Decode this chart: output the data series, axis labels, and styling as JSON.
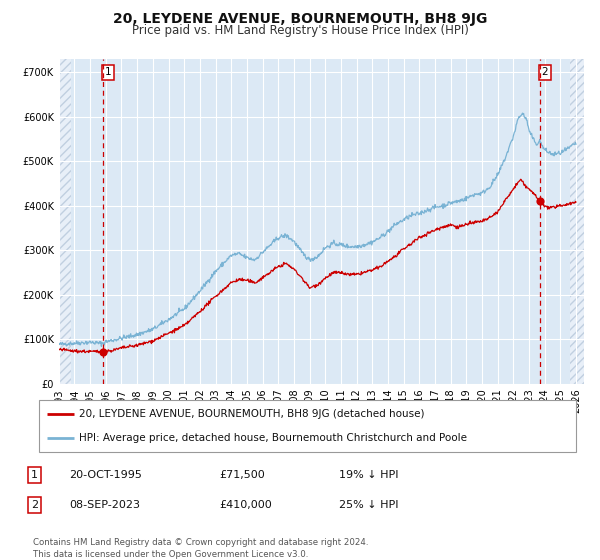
{
  "title": "20, LEYDENE AVENUE, BOURNEMOUTH, BH8 9JG",
  "subtitle": "Price paid vs. HM Land Registry's House Price Index (HPI)",
  "xlim_start": 1993.0,
  "xlim_end": 2026.5,
  "ylim": [
    0,
    730000
  ],
  "yticks": [
    0,
    100000,
    200000,
    300000,
    400000,
    500000,
    600000,
    700000
  ],
  "ytick_labels": [
    "£0",
    "£100K",
    "£200K",
    "£300K",
    "£400K",
    "£500K",
    "£600K",
    "£700K"
  ],
  "xticks": [
    1993,
    1994,
    1995,
    1996,
    1997,
    1998,
    1999,
    2000,
    2001,
    2002,
    2003,
    2004,
    2005,
    2006,
    2007,
    2008,
    2009,
    2010,
    2011,
    2012,
    2013,
    2014,
    2015,
    2016,
    2017,
    2018,
    2019,
    2020,
    2021,
    2022,
    2023,
    2024,
    2025,
    2026
  ],
  "point1_x": 1995.8,
  "point1_y": 71500,
  "point1_label": "1",
  "point2_x": 2023.68,
  "point2_y": 410000,
  "point2_label": "2",
  "legend1": "20, LEYDENE AVENUE, BOURNEMOUTH, BH8 9JG (detached house)",
  "legend2": "HPI: Average price, detached house, Bournemouth Christchurch and Poole",
  "annotation1_date": "20-OCT-1995",
  "annotation1_price": "£71,500",
  "annotation1_hpi": "19% ↓ HPI",
  "annotation2_date": "08-SEP-2023",
  "annotation2_price": "£410,000",
  "annotation2_hpi": "25% ↓ HPI",
  "footnote": "Contains HM Land Registry data © Crown copyright and database right 2024.\nThis data is licensed under the Open Government Licence v3.0.",
  "bg_color": "#dce9f5",
  "red_line_color": "#cc0000",
  "blue_line_color": "#7ab3d4",
  "grid_color": "#ffffff",
  "title_fontsize": 10,
  "subtitle_fontsize": 8.5,
  "tick_fontsize": 7,
  "legend_fontsize": 7.5,
  "annot_fontsize": 8,
  "footnote_fontsize": 6.2
}
